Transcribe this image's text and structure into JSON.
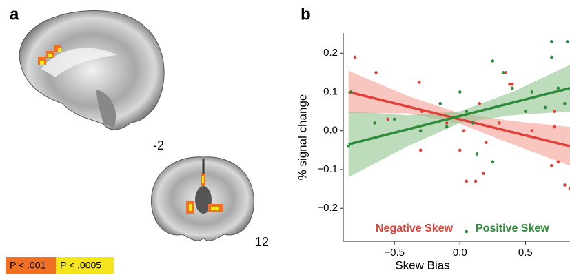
{
  "panel_a": {
    "label": "a",
    "slices": [
      {
        "label": "-2"
      },
      {
        "label": "12"
      }
    ],
    "legend": [
      {
        "label": "P < .001",
        "color": "#f07024"
      },
      {
        "label": "P < .0005",
        "color": "#f5e51c"
      }
    ]
  },
  "chart_data": {
    "type": "scatter",
    "panel_label": "b",
    "x_label": "Skew Bias",
    "y_label": "% signal change",
    "xlim": [
      -0.89,
      0.84
    ],
    "ylim": [
      -0.285,
      0.252
    ],
    "xticks": [
      {
        "value": -0.5,
        "label": "−0.5"
      },
      {
        "value": 0,
        "label": "0.0"
      },
      0.5
    ],
    "yticks": [
      {
        "value": -0.2,
        "label": "−0.2"
      },
      {
        "value": -0.1,
        "label": "−0.1"
      },
      {
        "value": 0,
        "label": "0.0"
      },
      0.1,
      0.2
    ],
    "series": [
      {
        "name": "Negative Skew",
        "color": "#e0413a",
        "band_color": "#f4a093",
        "x": [
          -0.8,
          -0.64,
          -0.31,
          -0.29,
          -0.3,
          -0.55,
          0.03,
          0.0,
          0.05,
          0.12,
          0.15,
          0.18,
          0.2,
          0.3,
          0.35,
          0.38,
          0.55,
          0.7,
          0.75,
          0.8,
          0.72,
          0.72,
          0.84,
          0.4,
          -0.1
        ],
        "values": [
          0.19,
          0.15,
          0.125,
          0.05,
          -0.05,
          0.03,
          0.0,
          -0.05,
          -0.13,
          -0.13,
          0.07,
          -0.11,
          -0.03,
          0.02,
          0.15,
          0.12,
          0.0,
          -0.09,
          -0.08,
          -0.14,
          0.05,
          0.01,
          -0.15,
          0.12,
          0.02
        ],
        "fit": {
          "x": [
            -0.85,
            0.84
          ],
          "values": [
            0.1,
            -0.04
          ]
        },
        "band": {
          "x": [
            -0.85,
            -0.4,
            0,
            0.4,
            0.84
          ],
          "lower": [
            0.045,
            0.045,
            0.018,
            -0.035,
            -0.09
          ],
          "upper": [
            0.155,
            0.09,
            0.045,
            0.025,
            0.01
          ]
        }
      },
      {
        "name": "Positive Skew",
        "color": "#2e8b3a",
        "band_color": "#8fc48f",
        "x": [
          -0.85,
          -0.83,
          -0.65,
          -0.5,
          -0.3,
          -0.15,
          -0.1,
          0.0,
          0.05,
          0.05,
          0.1,
          0.13,
          0.25,
          0.25,
          0.33,
          0.4,
          0.5,
          0.55,
          0.65,
          0.7,
          0.7,
          0.75,
          0.82,
          0.8
        ],
        "values": [
          -0.04,
          0.1,
          0.02,
          0.03,
          0.0,
          0.07,
          0.01,
          0.1,
          0.05,
          -0.26,
          0.02,
          -0.06,
          -0.08,
          0.18,
          0.15,
          0.11,
          0.05,
          0.1,
          0.06,
          0.23,
          0.19,
          0.11,
          0.23,
          0.07
        ],
        "fit": {
          "x": [
            -0.85,
            0.84
          ],
          "values": [
            -0.035,
            0.11
          ]
        },
        "band": {
          "x": [
            -0.85,
            -0.4,
            0,
            0.4,
            0.84
          ],
          "lower": [
            -0.12,
            -0.04,
            0.02,
            0.04,
            0.05
          ],
          "upper": [
            0.05,
            0.04,
            0.05,
            0.1,
            0.17
          ]
        }
      }
    ]
  }
}
